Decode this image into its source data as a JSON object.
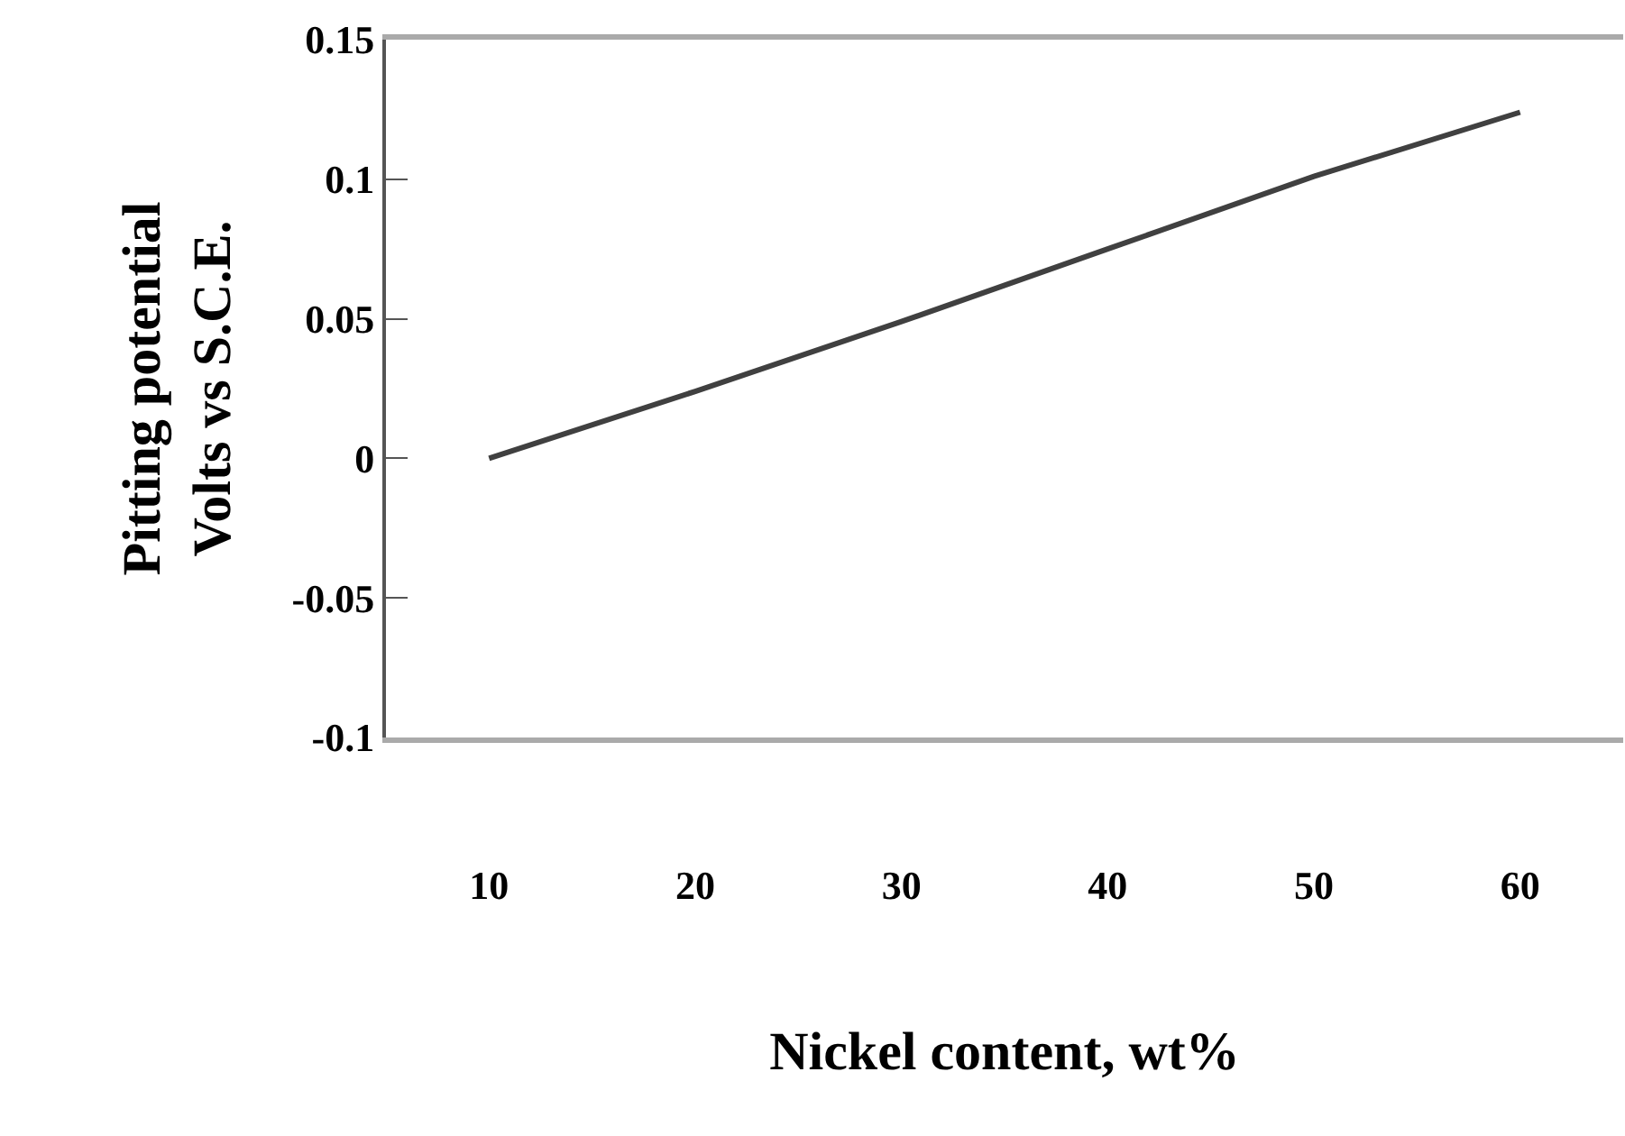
{
  "chart_data": {
    "type": "line",
    "xlabel": "Nickel content, wt%",
    "ylabel": "Pitting potential\nVolts vs S.C.E.",
    "categories": [
      "10",
      "20",
      "30",
      "40",
      "50",
      "60"
    ],
    "series": [
      {
        "color": "#404040",
        "values": [
          0,
          0.024,
          0.049,
          0.075,
          0.101,
          0.124
        ]
      }
    ],
    "ylim": [
      -0.1,
      0.15
    ],
    "yticks": [
      -0.1,
      -0.05,
      0,
      0.05,
      0.1,
      0.15
    ],
    "marker": "none",
    "line_style": "solid"
  }
}
